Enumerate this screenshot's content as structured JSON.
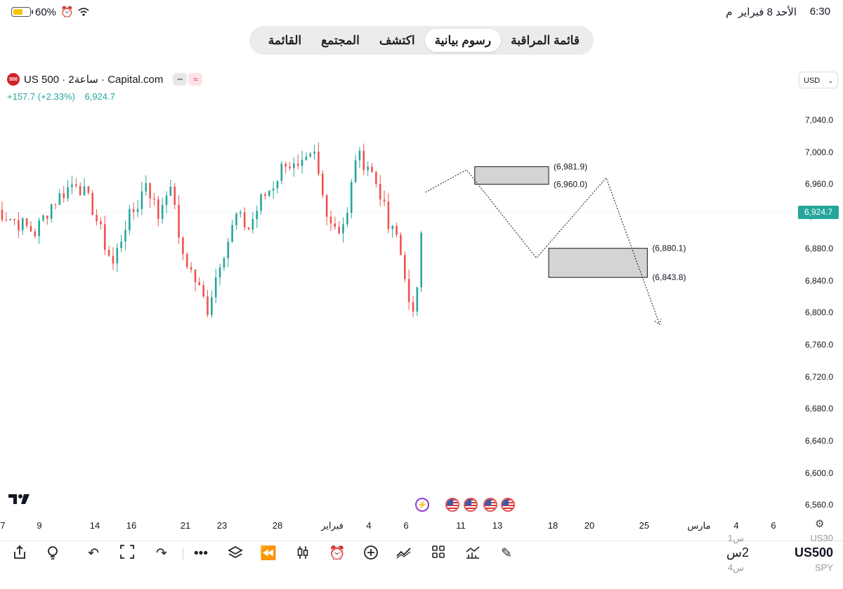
{
  "status_bar": {
    "time": "6:30",
    "period": "م",
    "date": "الأحد 8 فبراير",
    "battery": "60%"
  },
  "nav": {
    "tabs": [
      {
        "label": "قائمة المراقبة",
        "active": false
      },
      {
        "label": "رسوم بيانية",
        "active": true
      },
      {
        "label": "اكتشف",
        "active": false
      },
      {
        "label": "المجتمع",
        "active": false
      },
      {
        "label": "القائمة",
        "active": false
      }
    ]
  },
  "symbol": {
    "logo_text": "500",
    "title": "US 500 · 2ساعة · Capital.com",
    "change": "+157.7 (+2.33%)",
    "price": "6,924.7"
  },
  "currency": "USD",
  "chart_data": {
    "type": "candlestick",
    "ylim": [
      6540,
      7080
    ],
    "yticks": [
      "7,040.0",
      "7,000.0",
      "6,960.0",
      "6,920.0",
      "6,880.0",
      "6,840.0",
      "6,800.0",
      "6,760.0",
      "6,720.0",
      "6,680.0",
      "6,640.0",
      "6,600.0",
      "6,560.0"
    ],
    "last_price_label": "6,924.7",
    "xticks": [
      "7",
      "9",
      "14",
      "16",
      "21",
      "23",
      "28",
      "فبراير",
      "4",
      "6",
      "11",
      "13",
      "18",
      "20",
      "25",
      "مارس",
      "4",
      "6"
    ],
    "path": [
      [
        -2,
        6930
      ],
      [
        8,
        6900
      ],
      [
        12,
        6935
      ],
      [
        18,
        6965
      ],
      [
        22,
        6930
      ],
      [
        25,
        6885
      ],
      [
        27,
        6860
      ],
      [
        30,
        6910
      ],
      [
        33,
        6935
      ],
      [
        35,
        6965
      ],
      [
        38,
        6920
      ],
      [
        40,
        6955
      ],
      [
        42,
        6940
      ],
      [
        43,
        6885
      ],
      [
        47,
        6840
      ],
      [
        50,
        6805
      ],
      [
        53,
        6865
      ],
      [
        55,
        6890
      ],
      [
        57,
        6920
      ],
      [
        60,
        6905
      ],
      [
        63,
        6940
      ],
      [
        66,
        6960
      ],
      [
        69,
        6990
      ],
      [
        72,
        6975
      ],
      [
        76,
        6995
      ],
      [
        78,
        6945
      ],
      [
        80,
        6915
      ],
      [
        82,
        6905
      ],
      [
        84,
        6920
      ],
      [
        86,
        6995
      ],
      [
        89,
        6985
      ],
      [
        92,
        6950
      ],
      [
        94,
        6905
      ],
      [
        96,
        6895
      ],
      [
        98,
        6850
      ],
      [
        99.5,
        6785
      ],
      [
        100.5,
        6800
      ],
      [
        102,
        6910
      ],
      [
        103,
        6950
      ]
    ],
    "projection": [
      [
        103,
        6950
      ],
      [
        113,
        6978
      ],
      [
        130,
        6868
      ],
      [
        147,
        6968
      ],
      [
        160,
        6785
      ]
    ],
    "zones": [
      {
        "label_top": "(6,981.9)",
        "label_bottom": "(6,960.0)",
        "top": 6981.9,
        "bottom": 6960.0,
        "x0": 115,
        "x1": 133
      },
      {
        "label_top": "(6,880.1)",
        "label_bottom": "(6,843.8)",
        "top": 6880.1,
        "bottom": 6843.8,
        "x0": 133,
        "x1": 157
      }
    ],
    "grid": false
  },
  "toolbar": {
    "symbol": "US500",
    "interval": "2س",
    "above_interval": "1س",
    "above_symbol": "US30",
    "below_interval": "4س",
    "below_symbol": "SPY"
  },
  "icons": [
    "share-icon",
    "idea-icon",
    "undo-icon",
    "fullscreen-icon",
    "redo-icon",
    "more-icon",
    "layers-icon",
    "replay-icon",
    "candles-icon",
    "alert-icon",
    "add-icon",
    "trend-icon",
    "layout-icon",
    "indicators-icon",
    "draw-icon"
  ]
}
